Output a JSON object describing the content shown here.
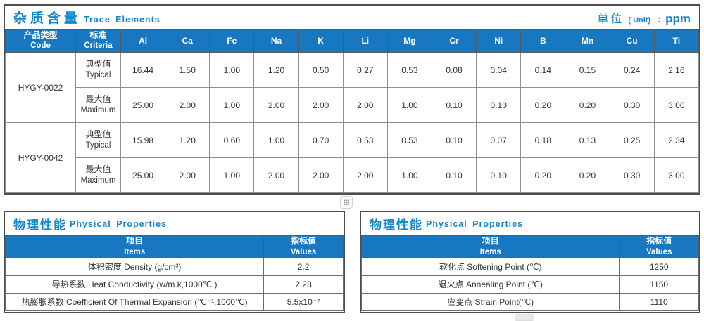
{
  "colors": {
    "accent_blue": "#1587cd",
    "header_bg": "#1777c0",
    "border_dark": "#4d4d4d"
  },
  "trace": {
    "title_zh": "杂质含量",
    "title_en": "Trace Elements",
    "unit": {
      "zh": "单位",
      "paren": "( Unit)",
      "colon": ":",
      "value": "ppm"
    },
    "columns": [
      {
        "zh": "产品类型",
        "en": "Code"
      },
      {
        "zh": "标准",
        "en": "Criteria"
      },
      "Al",
      "Ca",
      "Fe",
      "Na",
      "K",
      "Li",
      "Mg",
      "Cr",
      "Ni",
      "B",
      "Mn",
      "Cu",
      "Ti"
    ],
    "products": [
      {
        "code": "HYGY-0022",
        "rows": [
          {
            "label_zh": "典型值",
            "label_en": "Typical",
            "values": [
              "16.44",
              "1.50",
              "1.00",
              "1.20",
              "0.50",
              "0.27",
              "0.53",
              "0.08",
              "0.04",
              "0.14",
              "0.15",
              "0.24",
              "2.16"
            ]
          },
          {
            "label_zh": "最大值",
            "label_en": "Maximum",
            "values": [
              "25.00",
              "2.00",
              "1.00",
              "2.00",
              "2.00",
              "2.00",
              "1.00",
              "0.10",
              "0.10",
              "0.20",
              "0.20",
              "0.30",
              "3.00"
            ]
          }
        ]
      },
      {
        "code": "HYGY-0042",
        "rows": [
          {
            "label_zh": "典型值",
            "label_en": "Typical",
            "values": [
              "15.98",
              "1.20",
              "0.60",
              "1.00",
              "0.70",
              "0.53",
              "0.53",
              "0.10",
              "0.07",
              "0.18",
              "0.13",
              "0.25",
              "2.34"
            ]
          },
          {
            "label_zh": "最大值",
            "label_en": "Maximum",
            "values": [
              "25.00",
              "2.00",
              "1.00",
              "2.00",
              "2.00",
              "2.00",
              "1.00",
              "0.10",
              "0.10",
              "0.20",
              "0.20",
              "0.30",
              "3.00"
            ]
          }
        ]
      }
    ]
  },
  "phys_left": {
    "title_zh": "物理性能",
    "title_en": "Physical Properties",
    "col_items_zh": "项目",
    "col_items_en": "Items",
    "col_values_zh": "指标值",
    "col_values_en": "Values",
    "rows": [
      {
        "item": "体积密度 Density (g/cm³)",
        "value": "2.2"
      },
      {
        "item": "导热系数 Heat Conductivity (w/m.k,1000℃ )",
        "value": "2.28"
      },
      {
        "item": "热膨胀系数 Coefficient Of Thermal Expansion (℃⁻¹,1000℃)",
        "value": "5.5x10⁻⁷"
      }
    ]
  },
  "phys_right": {
    "title_zh": "物理性能",
    "title_en": "Physical Properties",
    "col_items_zh": "项目",
    "col_items_en": "Items",
    "col_values_zh": "指标值",
    "col_values_en": "Values",
    "rows": [
      {
        "item": "软化点 Softening Point (℃)",
        "value": "1250"
      },
      {
        "item": "退火点 Annealing Point (℃)",
        "value": "1150"
      },
      {
        "item": "应变点 Strain Point(℃)",
        "value": "1110"
      }
    ]
  }
}
